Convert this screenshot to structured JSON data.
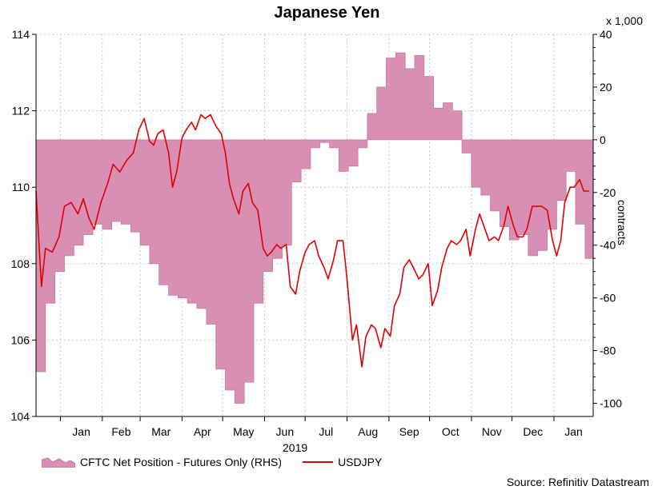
{
  "title": "Japanese Yen",
  "right_unit": "x 1,000",
  "right_axis_label": "contracts",
  "x_axis_title": "2019",
  "source": "Source: Refinitiv Datastream",
  "legend": {
    "area": "CFTC Net Position - Futures Only (RHS)",
    "line": "USDJPY"
  },
  "colors": {
    "area_fill": "#d98fb4",
    "area_stroke": "#c478a0",
    "line": "#e00000",
    "grid": "#c8c8c8"
  },
  "chart_data": {
    "type": "line",
    "title": "Japanese Yen",
    "xlabel": "2019",
    "ylabel": "",
    "y2label": "contracts",
    "x_months": [
      "Jan",
      "Feb",
      "Mar",
      "Apr",
      "May",
      "Jun",
      "Jul",
      "Aug",
      "Sep",
      "Oct",
      "Nov",
      "Dec",
      "Jan"
    ],
    "ylim": [
      104,
      114
    ],
    "yticks": [
      104,
      106,
      108,
      110,
      112,
      114
    ],
    "y2lim": [
      -105,
      40
    ],
    "y2ticks": [
      40,
      20,
      0,
      -20,
      -40,
      -60,
      -80,
      -100
    ],
    "grid": true,
    "legend_position": "bottom",
    "series": [
      {
        "name": "CFTC Net Position - Futures Only (RHS)",
        "kind": "area",
        "axis": "right",
        "points": [
          [
            "2018-12-14",
            -88
          ],
          [
            "2018-12-21",
            -62
          ],
          [
            "2018-12-28",
            -50
          ],
          [
            "2019-01-04",
            -44
          ],
          [
            "2019-01-11",
            -40
          ],
          [
            "2019-01-18",
            -36
          ],
          [
            "2019-01-25",
            -32
          ],
          [
            "2019-02-01",
            -34
          ],
          [
            "2019-02-08",
            -31
          ],
          [
            "2019-02-15",
            -32
          ],
          [
            "2019-02-22",
            -35
          ],
          [
            "2019-03-01",
            -40
          ],
          [
            "2019-03-08",
            -47
          ],
          [
            "2019-03-15",
            -55
          ],
          [
            "2019-03-22",
            -59
          ],
          [
            "2019-03-29",
            -60
          ],
          [
            "2019-04-05",
            -62
          ],
          [
            "2019-04-12",
            -64
          ],
          [
            "2019-04-19",
            -70
          ],
          [
            "2019-04-26",
            -87
          ],
          [
            "2019-05-03",
            -95
          ],
          [
            "2019-05-10",
            -100
          ],
          [
            "2019-05-17",
            -92
          ],
          [
            "2019-05-24",
            -62
          ],
          [
            "2019-05-31",
            -50
          ],
          [
            "2019-06-07",
            -45
          ],
          [
            "2019-06-14",
            -40
          ],
          [
            "2019-06-21",
            -16
          ],
          [
            "2019-06-28",
            -11
          ],
          [
            "2019-07-05",
            -3
          ],
          [
            "2019-07-12",
            -1
          ],
          [
            "2019-07-19",
            -3
          ],
          [
            "2019-07-26",
            -12
          ],
          [
            "2019-08-02",
            -10
          ],
          [
            "2019-08-09",
            -3
          ],
          [
            "2019-08-16",
            10
          ],
          [
            "2019-08-23",
            20
          ],
          [
            "2019-08-30",
            31
          ],
          [
            "2019-09-06",
            33
          ],
          [
            "2019-09-13",
            27
          ],
          [
            "2019-09-20",
            32
          ],
          [
            "2019-09-27",
            24
          ],
          [
            "2019-10-04",
            12
          ],
          [
            "2019-10-11",
            14
          ],
          [
            "2019-10-18",
            11
          ],
          [
            "2019-10-25",
            -5
          ],
          [
            "2019-11-01",
            -18
          ],
          [
            "2019-11-08",
            -21
          ],
          [
            "2019-11-15",
            -27
          ],
          [
            "2019-11-22",
            -33
          ],
          [
            "2019-11-29",
            -38
          ],
          [
            "2019-12-06",
            -36
          ],
          [
            "2019-12-13",
            -44
          ],
          [
            "2019-12-20",
            -42
          ],
          [
            "2019-12-27",
            -34
          ],
          [
            "2020-01-03",
            -23
          ],
          [
            "2020-01-10",
            -12
          ],
          [
            "2020-01-17",
            -32
          ],
          [
            "2020-01-24",
            -45
          ]
        ]
      },
      {
        "name": "USDJPY",
        "kind": "line",
        "axis": "left",
        "points": [
          [
            "2018-12-14",
            109.9
          ],
          [
            "2018-12-18",
            107.4
          ],
          [
            "2018-12-21",
            108.4
          ],
          [
            "2018-12-26",
            108.3
          ],
          [
            "2018-12-31",
            108.7
          ],
          [
            "2019-01-04",
            109.5
          ],
          [
            "2019-01-09",
            109.6
          ],
          [
            "2019-01-14",
            109.3
          ],
          [
            "2019-01-18",
            109.7
          ],
          [
            "2019-01-22",
            109.2
          ],
          [
            "2019-01-26",
            108.9
          ],
          [
            "2019-01-31",
            109.6
          ],
          [
            "2019-02-05",
            110.1
          ],
          [
            "2019-02-09",
            110.6
          ],
          [
            "2019-02-14",
            110.4
          ],
          [
            "2019-02-19",
            110.7
          ],
          [
            "2019-02-24",
            110.9
          ],
          [
            "2019-02-28",
            111.5
          ],
          [
            "2019-03-04",
            111.8
          ],
          [
            "2019-03-08",
            111.2
          ],
          [
            "2019-03-11",
            111.1
          ],
          [
            "2019-03-14",
            111.4
          ],
          [
            "2019-03-18",
            111.5
          ],
          [
            "2019-03-22",
            110.9
          ],
          [
            "2019-03-25",
            110.0
          ],
          [
            "2019-03-28",
            110.4
          ],
          [
            "2019-04-01",
            111.3
          ],
          [
            "2019-04-04",
            111.5
          ],
          [
            "2019-04-08",
            111.7
          ],
          [
            "2019-04-11",
            111.5
          ],
          [
            "2019-04-15",
            111.9
          ],
          [
            "2019-04-18",
            111.8
          ],
          [
            "2019-04-22",
            111.9
          ],
          [
            "2019-04-26",
            111.6
          ],
          [
            "2019-04-30",
            111.4
          ],
          [
            "2019-05-03",
            110.9
          ],
          [
            "2019-05-06",
            110.1
          ],
          [
            "2019-05-09",
            109.7
          ],
          [
            "2019-05-13",
            109.3
          ],
          [
            "2019-05-16",
            109.9
          ],
          [
            "2019-05-20",
            110.1
          ],
          [
            "2019-05-23",
            109.6
          ],
          [
            "2019-05-27",
            109.4
          ],
          [
            "2019-05-31",
            108.4
          ],
          [
            "2019-06-03",
            108.2
          ],
          [
            "2019-06-06",
            108.3
          ],
          [
            "2019-06-10",
            108.5
          ],
          [
            "2019-06-13",
            108.4
          ],
          [
            "2019-06-17",
            108.5
          ],
          [
            "2019-06-20",
            107.4
          ],
          [
            "2019-06-24",
            107.2
          ],
          [
            "2019-06-27",
            107.8
          ],
          [
            "2019-07-01",
            108.3
          ],
          [
            "2019-07-04",
            108.5
          ],
          [
            "2019-07-08",
            108.6
          ],
          [
            "2019-07-11",
            108.2
          ],
          [
            "2019-07-15",
            107.9
          ],
          [
            "2019-07-18",
            107.6
          ],
          [
            "2019-07-22",
            108.1
          ],
          [
            "2019-07-25",
            108.6
          ],
          [
            "2019-07-29",
            108.6
          ],
          [
            "2019-08-01",
            107.6
          ],
          [
            "2019-08-05",
            106.0
          ],
          [
            "2019-08-08",
            106.4
          ],
          [
            "2019-08-12",
            105.3
          ],
          [
            "2019-08-15",
            106.1
          ],
          [
            "2019-08-19",
            106.4
          ],
          [
            "2019-08-22",
            106.3
          ],
          [
            "2019-08-26",
            105.8
          ],
          [
            "2019-08-29",
            106.3
          ],
          [
            "2019-09-02",
            106.1
          ],
          [
            "2019-09-05",
            106.9
          ],
          [
            "2019-09-09",
            107.2
          ],
          [
            "2019-09-12",
            107.9
          ],
          [
            "2019-09-16",
            108.1
          ],
          [
            "2019-09-19",
            107.9
          ],
          [
            "2019-09-23",
            107.6
          ],
          [
            "2019-09-26",
            107.7
          ],
          [
            "2019-09-30",
            108.0
          ],
          [
            "2019-10-03",
            106.9
          ],
          [
            "2019-10-07",
            107.3
          ],
          [
            "2019-10-10",
            107.9
          ],
          [
            "2019-10-14",
            108.4
          ],
          [
            "2019-10-17",
            108.6
          ],
          [
            "2019-10-21",
            108.5
          ],
          [
            "2019-10-24",
            108.6
          ],
          [
            "2019-10-28",
            108.9
          ],
          [
            "2019-10-31",
            108.2
          ],
          [
            "2019-11-04",
            108.9
          ],
          [
            "2019-11-07",
            109.3
          ],
          [
            "2019-11-11",
            108.9
          ],
          [
            "2019-11-14",
            108.6
          ],
          [
            "2019-11-18",
            108.7
          ],
          [
            "2019-11-21",
            108.6
          ],
          [
            "2019-11-25",
            109.0
          ],
          [
            "2019-11-28",
            109.5
          ],
          [
            "2019-12-02",
            109.0
          ],
          [
            "2019-12-05",
            108.7
          ],
          [
            "2019-12-09",
            108.7
          ],
          [
            "2019-12-12",
            108.9
          ],
          [
            "2019-12-16",
            109.5
          ],
          [
            "2019-12-19",
            109.5
          ],
          [
            "2019-12-23",
            109.5
          ],
          [
            "2019-12-27",
            109.4
          ],
          [
            "2019-12-31",
            108.6
          ],
          [
            "2020-01-03",
            108.2
          ],
          [
            "2020-01-06",
            108.6
          ],
          [
            "2020-01-09",
            109.6
          ],
          [
            "2020-01-13",
            110.0
          ],
          [
            "2020-01-16",
            110.0
          ],
          [
            "2020-01-20",
            110.2
          ],
          [
            "2020-01-23",
            109.9
          ],
          [
            "2020-01-27",
            109.9
          ]
        ]
      }
    ]
  }
}
